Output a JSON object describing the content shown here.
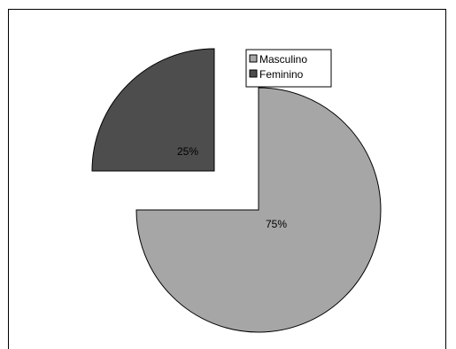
{
  "chart_data": {
    "type": "pie",
    "exploded": true,
    "categories": [
      "Masculino",
      "Feminino"
    ],
    "values": [
      75,
      25
    ],
    "data_labels": [
      "75%",
      "25%"
    ],
    "colors": [
      "#a6a6a6",
      "#4d4d4d"
    ],
    "legend_position": "top-right"
  }
}
